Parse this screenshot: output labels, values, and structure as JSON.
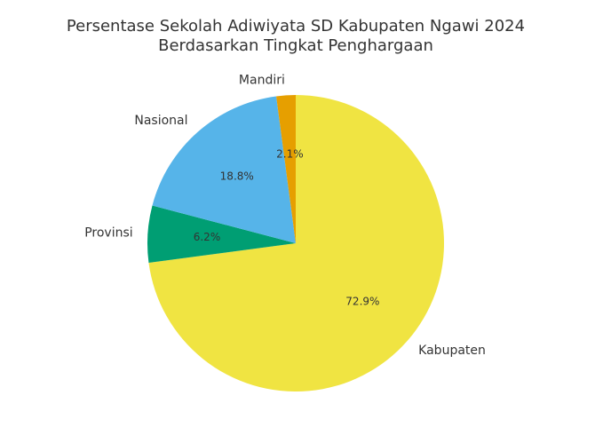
{
  "chart_data": {
    "type": "pie",
    "title": [
      "Persentase Sekolah Adiwiyata SD Kabupaten Ngawi 2024",
      "Berdasarkan Tingkat Penghargaan"
    ],
    "categories": [
      "Kabupaten",
      "Provinsi",
      "Nasional",
      "Mandiri"
    ],
    "values": [
      72.9,
      6.2,
      18.8,
      2.1
    ],
    "value_labels": [
      "72.9%",
      "6.2%",
      "18.8%",
      "2.1%"
    ],
    "colors": [
      "#f0e442",
      "#009e73",
      "#56b4e9",
      "#e69f00"
    ]
  }
}
